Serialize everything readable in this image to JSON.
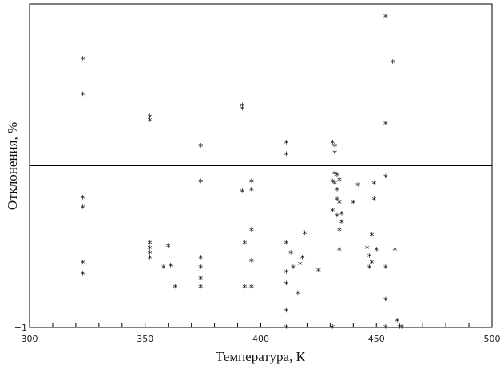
{
  "chart_data": {
    "type": "scatter",
    "marker": "*",
    "xlabel": "Температура, К",
    "ylabel": "Отклонения, %",
    "xlim": [
      300,
      500
    ],
    "ylim": [
      -1,
      1
    ],
    "x_ticks": [
      "300",
      "350",
      "400",
      "450",
      "500"
    ],
    "y_ticks": [
      "−1"
    ],
    "zero_line": true,
    "grid": false,
    "points": [
      [
        323,
        0.67
      ],
      [
        323,
        0.45
      ],
      [
        323,
        -0.19
      ],
      [
        323,
        -0.25
      ],
      [
        323,
        -0.59
      ],
      [
        323,
        -0.66
      ],
      [
        352,
        0.31
      ],
      [
        352,
        0.29
      ],
      [
        352,
        -0.47
      ],
      [
        352,
        -0.5
      ],
      [
        352,
        -0.53
      ],
      [
        352,
        -0.56
      ],
      [
        358,
        -0.62
      ],
      [
        360,
        -0.49
      ],
      [
        361,
        -0.61
      ],
      [
        363,
        -0.74
      ],
      [
        374,
        0.13
      ],
      [
        374,
        -0.09
      ],
      [
        374,
        -0.56
      ],
      [
        374,
        -0.62
      ],
      [
        374,
        -0.69
      ],
      [
        374,
        -0.74
      ],
      [
        392,
        0.38
      ],
      [
        392,
        0.36
      ],
      [
        392,
        -0.15
      ],
      [
        393,
        -0.47
      ],
      [
        393,
        -0.74
      ],
      [
        396,
        -0.09
      ],
      [
        396,
        -0.14
      ],
      [
        396,
        -0.39
      ],
      [
        396,
        -0.58
      ],
      [
        396,
        -0.74
      ],
      [
        411,
        0.15
      ],
      [
        411,
        0.08
      ],
      [
        411,
        -0.47
      ],
      [
        411,
        -0.65
      ],
      [
        411,
        -0.72
      ],
      [
        411,
        -0.89
      ],
      [
        411,
        -0.99
      ],
      [
        413,
        -0.53
      ],
      [
        414,
        -0.62
      ],
      [
        416,
        -0.78
      ],
      [
        417,
        -0.6
      ],
      [
        418,
        -0.56
      ],
      [
        419,
        -0.41
      ],
      [
        425,
        -0.64
      ],
      [
        431,
        0.15
      ],
      [
        431,
        -0.09
      ],
      [
        431,
        -0.27
      ],
      [
        431,
        -0.99
      ],
      [
        432,
        0.13
      ],
      [
        432,
        0.09
      ],
      [
        432,
        -0.04
      ],
      [
        432,
        -0.1
      ],
      [
        433,
        -0.05
      ],
      [
        433,
        -0.14
      ],
      [
        433,
        -0.2
      ],
      [
        433,
        -0.3
      ],
      [
        434,
        -0.08
      ],
      [
        434,
        -0.22
      ],
      [
        434,
        -0.39
      ],
      [
        434,
        -0.51
      ],
      [
        435,
        -0.29
      ],
      [
        435,
        -0.34
      ],
      [
        440,
        -0.22
      ],
      [
        442,
        -0.11
      ],
      [
        446,
        -0.5
      ],
      [
        447,
        -0.55
      ],
      [
        447,
        -0.62
      ],
      [
        448,
        -0.42
      ],
      [
        448,
        -0.59
      ],
      [
        449,
        -0.1
      ],
      [
        449,
        -0.2
      ],
      [
        450,
        -0.51
      ],
      [
        454,
        0.93
      ],
      [
        454,
        0.27
      ],
      [
        454,
        -0.06
      ],
      [
        454,
        -0.62
      ],
      [
        454,
        -0.82
      ],
      [
        454,
        -0.99
      ],
      [
        457,
        0.65
      ],
      [
        458,
        -0.51
      ],
      [
        459,
        -0.95
      ],
      [
        460,
        -0.99
      ],
      [
        461,
        -0.99
      ]
    ]
  }
}
